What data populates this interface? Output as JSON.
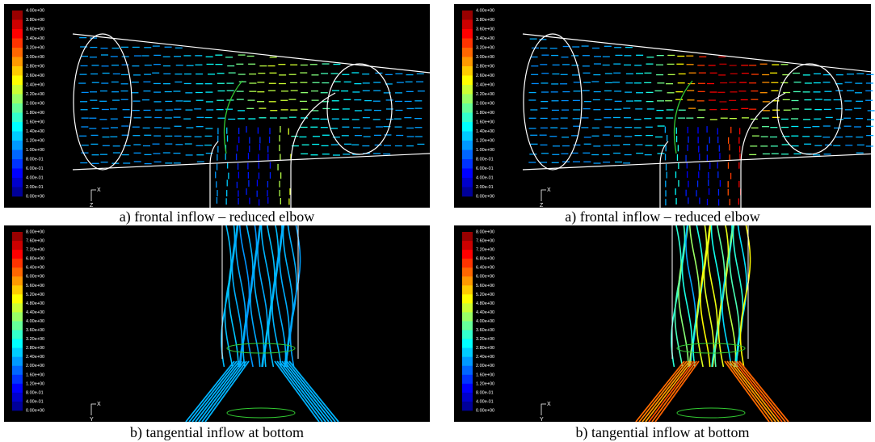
{
  "panels": [
    {
      "caption": "a) frontal inflow – reduced elbow",
      "colorbar": [
        "4.00e+00",
        "3.80e+00",
        "3.60e+00",
        "3.40e+00",
        "3.20e+00",
        "3.00e+00",
        "2.80e+00",
        "2.60e+00",
        "2.40e+00",
        "2.20e+00",
        "2.00e+00",
        "1.80e+00",
        "1.60e+00",
        "1.40e+00",
        "1.20e+00",
        "1.00e+00",
        "8.00e-01",
        "6.00e-01",
        "4.00e-01",
        "2.00e-01",
        "0.00e+00"
      ],
      "triad": [
        "X",
        "Z"
      ]
    },
    {
      "caption": "a) frontal inflow – reduced elbow",
      "colorbar": [
        "4.00e+00",
        "3.80e+00",
        "3.60e+00",
        "3.40e+00",
        "3.20e+00",
        "3.00e+00",
        "2.80e+00",
        "2.60e+00",
        "2.40e+00",
        "2.20e+00",
        "2.00e+00",
        "1.80e+00",
        "1.60e+00",
        "1.40e+00",
        "1.20e+00",
        "1.00e+00",
        "8.00e-01",
        "6.00e-01",
        "4.00e-01",
        "2.00e-01",
        "0.00e+00"
      ],
      "triad": [
        "X",
        "Z"
      ]
    },
    {
      "caption": "b) tangential inflow at bottom",
      "colorbar": [
        "8.00e+00",
        "7.60e+00",
        "7.20e+00",
        "6.80e+00",
        "6.40e+00",
        "6.00e+00",
        "5.60e+00",
        "5.20e+00",
        "4.80e+00",
        "4.40e+00",
        "4.00e+00",
        "3.60e+00",
        "3.20e+00",
        "2.80e+00",
        "2.40e+00",
        "2.00e+00",
        "1.60e+00",
        "1.20e+00",
        "8.00e-01",
        "4.00e-01",
        "0.00e+00"
      ],
      "triad": [
        "X",
        "Y"
      ]
    },
    {
      "caption": "b) tangential inflow at bottom",
      "colorbar": [
        "8.00e+00",
        "7.60e+00",
        "7.20e+00",
        "6.80e+00",
        "6.40e+00",
        "6.00e+00",
        "5.60e+00",
        "5.20e+00",
        "4.80e+00",
        "4.40e+00",
        "4.00e+00",
        "3.60e+00",
        "3.20e+00",
        "2.80e+00",
        "2.40e+00",
        "2.00e+00",
        "1.60e+00",
        "1.20e+00",
        "8.00e-01",
        "4.00e-01",
        "0.00e+00"
      ],
      "triad": [
        "X",
        "Y"
      ]
    }
  ]
}
